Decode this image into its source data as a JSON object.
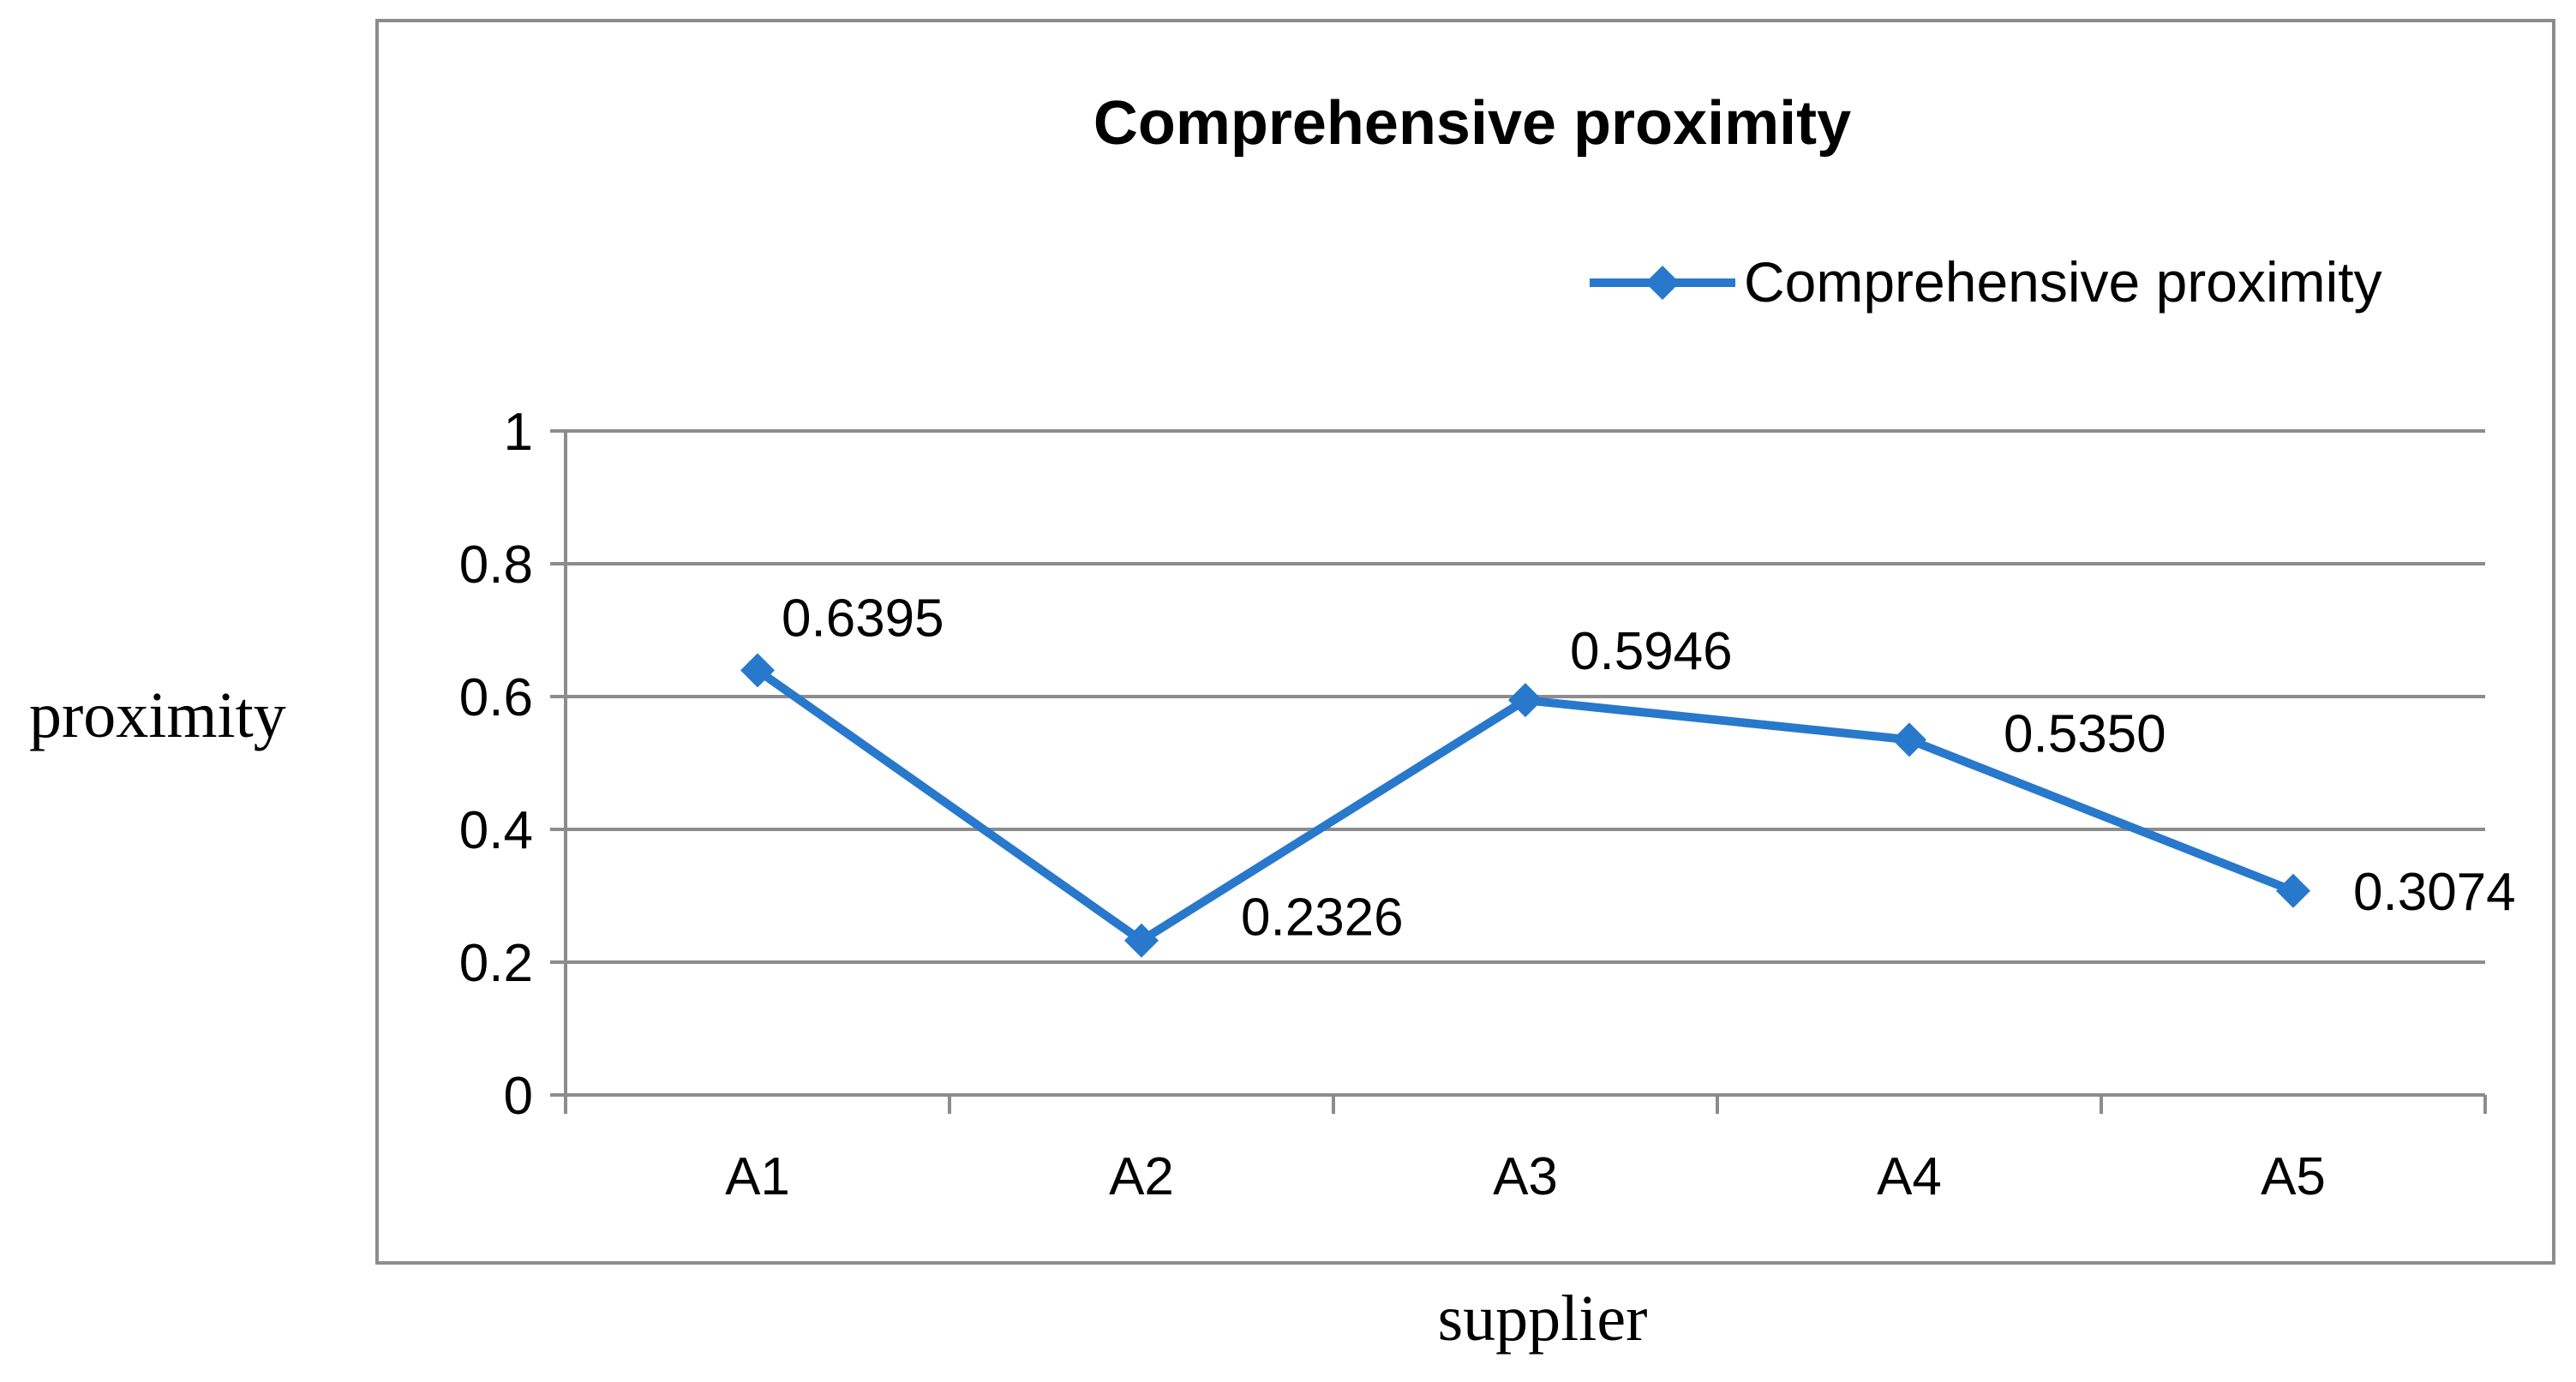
{
  "chart_data": {
    "type": "line",
    "title": "Comprehensive proximity",
    "xlabel": "supplier",
    "ylabel": "proximity",
    "categories": [
      "A1",
      "A2",
      "A3",
      "A4",
      "A5"
    ],
    "series": [
      {
        "name": "Comprehensive proximity",
        "values": [
          0.6395,
          0.2326,
          0.5946,
          0.535,
          0.3074
        ],
        "labels": [
          "0.6395",
          "0.2326",
          "0.5946",
          "0.5350",
          "0.3074"
        ],
        "color": "#2878CC",
        "marker": "diamond"
      }
    ],
    "yticks": [
      "0",
      "0.2",
      "0.4",
      "0.6",
      "0.8",
      "1"
    ],
    "ylim": [
      0,
      1
    ],
    "grid": true,
    "legend_position": "top-right",
    "border_color": "#8c8c8c",
    "grid_color": "#8c8c8c"
  }
}
